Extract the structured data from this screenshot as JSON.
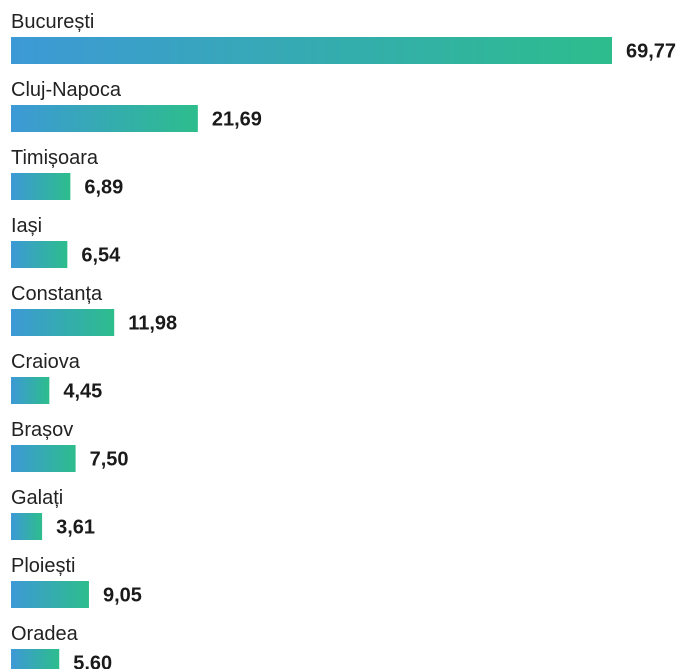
{
  "chart_data": {
    "type": "bar",
    "orientation": "horizontal",
    "title": "",
    "xlabel": "",
    "ylabel": "",
    "grid": false,
    "legend": "none",
    "categories": [
      "București",
      "Cluj-Napoca",
      "Timișoara",
      "Iași",
      "Constanța",
      "Craiova",
      "Brașov",
      "Galați",
      "Ploiești",
      "Oradea"
    ],
    "values": [
      69.77,
      21.69,
      6.89,
      6.54,
      11.98,
      4.45,
      7.5,
      3.61,
      9.05,
      5.6
    ],
    "value_labels": [
      "69,77",
      "21,69",
      "6,89",
      "6,54",
      "11,98",
      "4,45",
      "7,50",
      "3,61",
      "9,05",
      "5,60"
    ],
    "xlim": [
      0,
      69.77
    ],
    "colors": {
      "gradient_start": "#3d99d6",
      "gradient_end": "#2dbd8c",
      "value_text": "#1a1a1a",
      "label_text": "#222222"
    }
  }
}
